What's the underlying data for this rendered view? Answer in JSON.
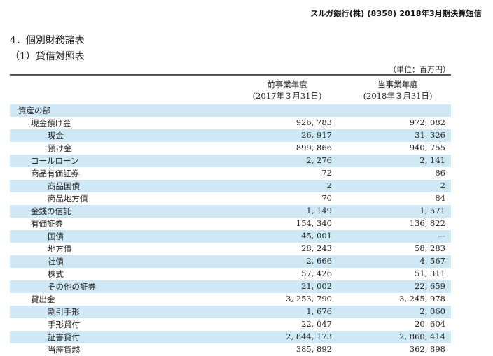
{
  "header": {
    "company": "スルガ銀行(株)  (8358)  2018年3月期決算短信"
  },
  "section_title": "4．個別財務諸表",
  "sub_title": "（1）貸借対照表",
  "unit": "（単位：百万円）",
  "columns": {
    "prev": {
      "line1": "前事業年度",
      "line2": "(2017年３月31日)"
    },
    "curr": {
      "line1": "当事業年度",
      "line2": "(2018年３月31日)"
    }
  },
  "rows": [
    {
      "label": "資産の部",
      "level": 0,
      "prev": "",
      "curr": "",
      "shaded": true
    },
    {
      "label": "現金預け金",
      "level": 1,
      "prev": "926, 783",
      "curr": "972, 082",
      "shaded": false
    },
    {
      "label": "現金",
      "level": 2,
      "prev": "26, 917",
      "curr": "31, 326",
      "shaded": true
    },
    {
      "label": "預け金",
      "level": 2,
      "prev": "899, 866",
      "curr": "940, 755",
      "shaded": false
    },
    {
      "label": "コールローン",
      "level": 1,
      "prev": "2, 276",
      "curr": "2, 141",
      "shaded": true
    },
    {
      "label": "商品有価証券",
      "level": 1,
      "prev": "72",
      "curr": "86",
      "shaded": false
    },
    {
      "label": "商品国債",
      "level": 2,
      "prev": "2",
      "curr": "2",
      "shaded": true
    },
    {
      "label": "商品地方債",
      "level": 2,
      "prev": "70",
      "curr": "84",
      "shaded": false
    },
    {
      "label": "金銭の信託",
      "level": 1,
      "prev": "1, 149",
      "curr": "1, 571",
      "shaded": true
    },
    {
      "label": "有価証券",
      "level": 1,
      "prev": "154, 340",
      "curr": "136, 822",
      "shaded": false
    },
    {
      "label": "国債",
      "level": 2,
      "prev": "45, 001",
      "curr": "—",
      "shaded": true
    },
    {
      "label": "地方債",
      "level": 2,
      "prev": "28, 243",
      "curr": "58, 283",
      "shaded": false
    },
    {
      "label": "社債",
      "level": 2,
      "prev": "2, 666",
      "curr": "4, 567",
      "shaded": true
    },
    {
      "label": "株式",
      "level": 2,
      "prev": "57, 426",
      "curr": "51, 311",
      "shaded": false
    },
    {
      "label": "その他の証券",
      "level": 2,
      "prev": "21, 002",
      "curr": "22, 659",
      "shaded": true
    },
    {
      "label": "貸出金",
      "level": 1,
      "prev": "3, 253, 790",
      "curr": "3, 245, 978",
      "shaded": false
    },
    {
      "label": "割引手形",
      "level": 2,
      "prev": "1, 676",
      "curr": "2, 060",
      "shaded": true
    },
    {
      "label": "手形貸付",
      "level": 2,
      "prev": "22, 047",
      "curr": "20, 604",
      "shaded": false
    },
    {
      "label": "証書貸付",
      "level": 2,
      "prev": "2, 844, 173",
      "curr": "2, 860, 414",
      "shaded": true
    },
    {
      "label": "当座貸越",
      "level": 2,
      "prev": "385, 892",
      "curr": "362, 898",
      "shaded": false
    }
  ]
}
